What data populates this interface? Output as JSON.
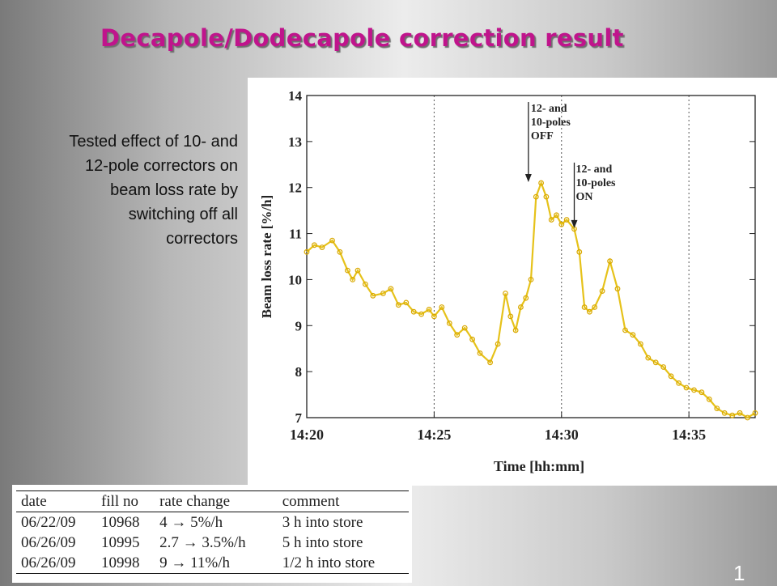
{
  "slide": {
    "title": "Decapole/Dodecapole correction result",
    "note_lines": [
      "Tested effect of 10- and",
      "12-pole correctors on",
      "beam loss rate by",
      "switching off all",
      "correctors"
    ],
    "page_number": "1"
  },
  "chart_data": {
    "type": "line",
    "xlabel": "Time [hh:mm]",
    "ylabel": "Beam loss rate [%/h]",
    "x_ticks": [
      "14:20",
      "14:25",
      "14:30",
      "14:35"
    ],
    "y_ticks": [
      "7",
      "8",
      "9",
      "10",
      "11",
      "12",
      "13",
      "14"
    ],
    "xlim_minutes_after_1420": [
      0,
      17.6
    ],
    "ylim": [
      7,
      14
    ],
    "grid": "vertical dotted lines at tick times",
    "series_color": "#e6c21a",
    "annotations": [
      {
        "text": [
          "12- and",
          "10-poles",
          "OFF"
        ],
        "x": 8.7,
        "y": 12.1
      },
      {
        "text": [
          "12- and",
          "10-poles",
          "ON"
        ],
        "x": 10.5,
        "y": 11.1
      }
    ],
    "series": [
      {
        "x_minutes_after_1420": [
          0.0,
          0.3,
          0.6,
          1.0,
          1.3,
          1.6,
          1.8,
          2.0,
          2.3,
          2.6,
          3.0,
          3.3,
          3.6,
          3.9,
          4.2,
          4.5,
          4.8,
          5.0,
          5.3,
          5.6,
          5.9,
          6.2,
          6.5,
          6.8,
          7.2,
          7.5,
          7.8,
          8.0,
          8.2,
          8.4,
          8.6,
          8.8,
          9.0,
          9.2,
          9.4,
          9.6,
          9.8,
          10.0,
          10.2,
          10.5,
          10.7,
          10.9,
          11.1,
          11.3,
          11.6,
          11.9,
          12.2,
          12.5,
          12.8,
          13.1,
          13.4,
          13.7,
          14.0,
          14.3,
          14.6,
          14.9,
          15.2,
          15.5,
          15.8,
          16.1,
          16.4,
          16.7,
          17.0,
          17.3,
          17.6
        ],
        "beam_loss_rate_pct_per_h": [
          10.6,
          10.75,
          10.7,
          10.85,
          10.6,
          10.2,
          10.0,
          10.2,
          9.9,
          9.65,
          9.7,
          9.8,
          9.45,
          9.5,
          9.3,
          9.25,
          9.35,
          9.2,
          9.4,
          9.05,
          8.8,
          8.95,
          8.7,
          8.4,
          8.2,
          8.6,
          9.7,
          9.2,
          8.9,
          9.4,
          9.6,
          10.0,
          11.8,
          12.1,
          11.8,
          11.3,
          11.4,
          11.2,
          11.3,
          11.1,
          10.6,
          9.4,
          9.3,
          9.4,
          9.75,
          10.4,
          9.8,
          8.9,
          8.8,
          8.6,
          8.3,
          8.2,
          8.1,
          7.9,
          7.75,
          7.65,
          7.6,
          7.55,
          7.4,
          7.2,
          7.1,
          7.05,
          7.1,
          7.0,
          7.1
        ]
      }
    ]
  },
  "table": {
    "headers": [
      "date",
      "fill no",
      "rate change",
      "comment"
    ],
    "rows": [
      [
        "06/22/09",
        "10968",
        "4 → 5%/h",
        "3 h into store"
      ],
      [
        "06/26/09",
        "10995",
        "2.7 → 3.5%/h",
        "5 h into store"
      ],
      [
        "06/26/09",
        "10998",
        "9 → 11%/h",
        "1/2 h into store"
      ]
    ]
  }
}
